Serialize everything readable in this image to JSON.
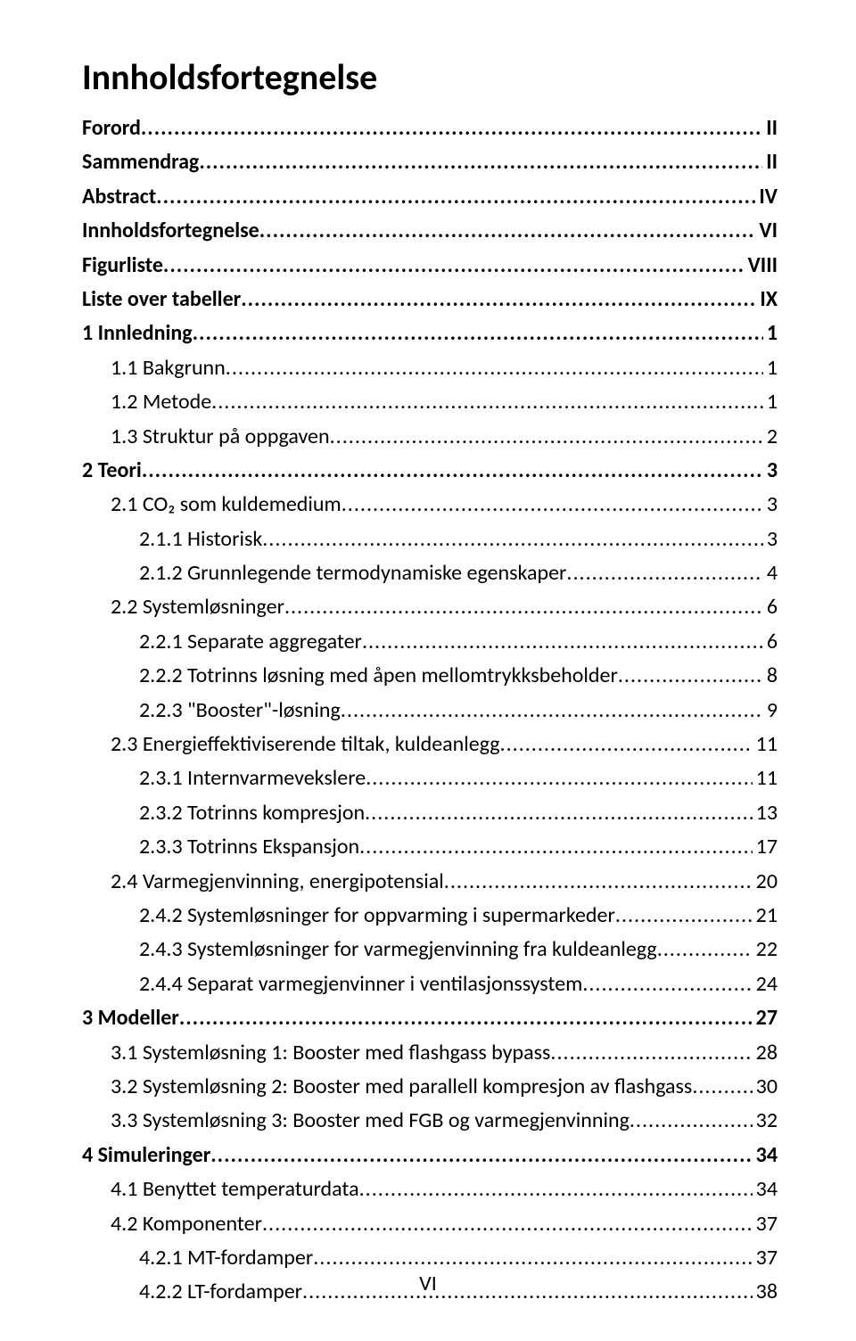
{
  "title": "Innholdsfortegnelse",
  "footer": "VI",
  "entries": [
    {
      "label": "Forord",
      "page": "II",
      "indent": 0,
      "bold": true
    },
    {
      "label": "Sammendrag",
      "page": "II",
      "indent": 0,
      "bold": true
    },
    {
      "label": "Abstract",
      "page": "IV",
      "indent": 0,
      "bold": true
    },
    {
      "label": "Innholdsfortegnelse",
      "page": "VI",
      "indent": 0,
      "bold": true
    },
    {
      "label": "Figurliste",
      "page": "VIII",
      "indent": 0,
      "bold": true
    },
    {
      "label": "Liste over tabeller",
      "page": "IX",
      "indent": 0,
      "bold": true
    },
    {
      "label": "1 Innledning",
      "page": "1",
      "indent": 0,
      "bold": true
    },
    {
      "label": "1.1 Bakgrunn",
      "page": "1",
      "indent": 1,
      "bold": false
    },
    {
      "label": "1.2 Metode",
      "page": "1",
      "indent": 1,
      "bold": false
    },
    {
      "label": "1.3 Struktur på oppgaven",
      "page": "2",
      "indent": 1,
      "bold": false
    },
    {
      "label": "2 Teori",
      "page": "3",
      "indent": 0,
      "bold": true
    },
    {
      "label": "2.1 CO₂ som kuldemedium",
      "page": "3",
      "indent": 1,
      "bold": false
    },
    {
      "label": "2.1.1 Historisk",
      "page": "3",
      "indent": 2,
      "bold": false
    },
    {
      "label": "2.1.2 Grunnlegende termodynamiske egenskaper",
      "page": "4",
      "indent": 2,
      "bold": false
    },
    {
      "label": "2.2 Systemløsninger",
      "page": "6",
      "indent": 1,
      "bold": false
    },
    {
      "label": "2.2.1 Separate aggregater",
      "page": "6",
      "indent": 2,
      "bold": false
    },
    {
      "label": "2.2.2 Totrinns løsning med åpen mellomtrykksbeholder",
      "page": "8",
      "indent": 2,
      "bold": false
    },
    {
      "label": "2.2.3 \"Booster\"-løsning",
      "page": "9",
      "indent": 2,
      "bold": false
    },
    {
      "label": "2.3 Energieffektiviserende tiltak, kuldeanlegg",
      "page": "11",
      "indent": 1,
      "bold": false
    },
    {
      "label": "2.3.1 Internvarmevekslere",
      "page": "11",
      "indent": 2,
      "bold": false
    },
    {
      "label": "2.3.2 Totrinns kompresjon",
      "page": "13",
      "indent": 2,
      "bold": false
    },
    {
      "label": "2.3.3 Totrinns Ekspansjon",
      "page": "17",
      "indent": 2,
      "bold": false
    },
    {
      "label": "2.4 Varmegjenvinning, energipotensial",
      "page": "20",
      "indent": 1,
      "bold": false
    },
    {
      "label": "2.4.2 Systemløsninger for oppvarming i supermarkeder",
      "page": "21",
      "indent": 2,
      "bold": false
    },
    {
      "label": "2.4.3 Systemløsninger for varmegjenvinning fra kuldeanlegg",
      "page": "22",
      "indent": 2,
      "bold": false
    },
    {
      "label": "2.4.4 Separat varmegjenvinner i ventilasjonssystem",
      "page": "24",
      "indent": 2,
      "bold": false
    },
    {
      "label": "3 Modeller",
      "page": "27",
      "indent": 0,
      "bold": true
    },
    {
      "label": "3.1 Systemløsning 1: Booster med flashgass bypass",
      "page": "28",
      "indent": 1,
      "bold": false
    },
    {
      "label": "3.2 Systemløsning 2: Booster med parallell kompresjon av flashgass",
      "page": "30",
      "indent": 1,
      "bold": false
    },
    {
      "label": "3.3 Systemløsning 3: Booster med FGB og varmegjenvinning",
      "page": "32",
      "indent": 1,
      "bold": false
    },
    {
      "label": "4 Simuleringer",
      "page": "34",
      "indent": 0,
      "bold": true
    },
    {
      "label": "4.1 Benyttet temperaturdata",
      "page": "34",
      "indent": 1,
      "bold": false
    },
    {
      "label": "4.2 Komponenter",
      "page": "37",
      "indent": 1,
      "bold": false
    },
    {
      "label": "4.2.1 MT-fordamper",
      "page": "37",
      "indent": 2,
      "bold": false
    },
    {
      "label": "4.2.2 LT-fordamper",
      "page": "38",
      "indent": 2,
      "bold": false
    }
  ]
}
